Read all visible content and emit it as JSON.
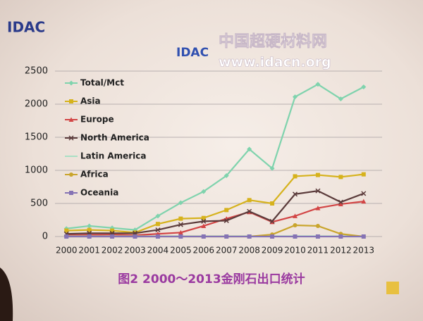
{
  "header": {
    "logo": "IDAC",
    "site_logo": "IDAC",
    "site_name": "中国超硬材料网",
    "url": "www.idacn.org"
  },
  "chart_data": {
    "type": "line",
    "categories": [
      "2000",
      "2001",
      "2002",
      "2003",
      "2004",
      "2005",
      "2006",
      "2007",
      "2008",
      "2009",
      "2010",
      "2011",
      "2012",
      "2013"
    ],
    "series": [
      {
        "name": "Total/Mct",
        "color": "#7fd3ad",
        "marker": "diamond",
        "values": [
          120,
          160,
          130,
          100,
          310,
          510,
          680,
          920,
          1320,
          1030,
          2110,
          2300,
          2080,
          2260
        ]
      },
      {
        "name": "Asia",
        "color": "#d6b21c",
        "marker": "square",
        "values": [
          90,
          100,
          90,
          60,
          190,
          270,
          280,
          400,
          550,
          500,
          910,
          930,
          900,
          940
        ]
      },
      {
        "name": "Europe",
        "color": "#d24545",
        "marker": "triangle",
        "values": [
          20,
          25,
          30,
          20,
          40,
          60,
          160,
          270,
          370,
          220,
          310,
          430,
          490,
          530
        ]
      },
      {
        "name": "North America",
        "color": "#5b3b3b",
        "marker": "cross",
        "values": [
          40,
          50,
          50,
          50,
          100,
          180,
          230,
          240,
          380,
          230,
          640,
          690,
          520,
          650
        ]
      },
      {
        "name": "Latin America",
        "color": "#a9e0c4",
        "marker": "none",
        "values": [
          5,
          5,
          5,
          5,
          5,
          5,
          5,
          5,
          5,
          5,
          5,
          5,
          5,
          5
        ]
      },
      {
        "name": "Africa",
        "color": "#c9a52c",
        "marker": "circle",
        "values": [
          0,
          0,
          0,
          0,
          0,
          0,
          0,
          0,
          0,
          30,
          170,
          160,
          40,
          0
        ]
      },
      {
        "name": "Oceania",
        "color": "#8573b4",
        "marker": "square",
        "values": [
          0,
          0,
          0,
          0,
          0,
          0,
          0,
          0,
          0,
          0,
          0,
          0,
          0,
          0
        ]
      }
    ],
    "ylim": [
      0,
      2500
    ],
    "yticks": [
      0,
      500,
      1000,
      1500,
      2000,
      2500
    ],
    "grid": true,
    "legend": "upper left"
  },
  "caption": "图2  2000～2013金刚石出口统计"
}
